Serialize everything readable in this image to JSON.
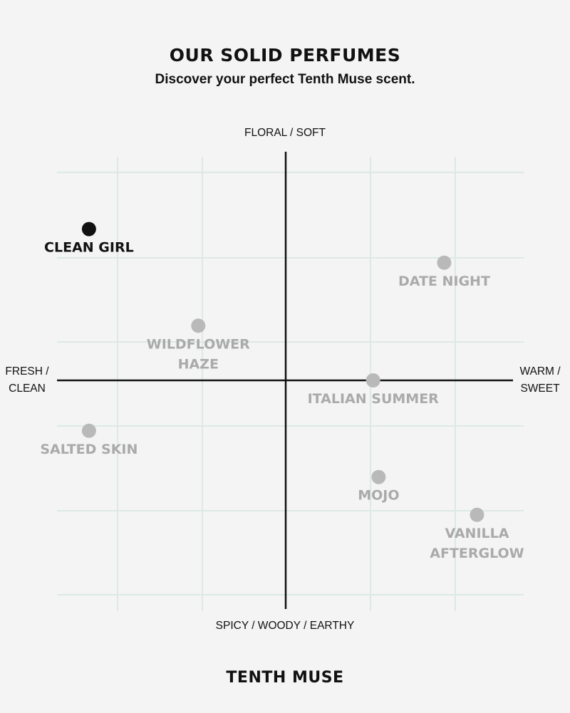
{
  "header": {
    "title": "OUR SOLID PERFUMES",
    "subtitle": "Discover your perfect Tenth Muse scent."
  },
  "footer": {
    "brand": "TENTH MUSE"
  },
  "colors": {
    "background": "#f4f4f4",
    "grid": "#dce9e4",
    "axis": "#111111",
    "highlight": "#111111",
    "muted_point": "#b9b9b9",
    "muted_label": "#aaaaaa"
  },
  "chart_data": {
    "type": "scatter",
    "axes": {
      "top_label": "FLORAL / SOFT",
      "bottom_label": "SPICY / WOODY / EARTHY",
      "left_label": [
        "FRESH /",
        "CLEAN"
      ],
      "right_label": [
        "WARM /",
        "SWEET"
      ]
    },
    "xlim": [
      -2,
      2
    ],
    "ylim": [
      -2.7,
      2.45
    ],
    "grid": true,
    "points": [
      {
        "name": [
          "CLEAN GIRL"
        ],
        "x": -1.8,
        "y": 1.8,
        "highlight": true
      },
      {
        "name": [
          "DATE NIGHT"
        ],
        "x": 1.45,
        "y": 1.4,
        "highlight": false
      },
      {
        "name": [
          "WILDFLOWER",
          "HAZE"
        ],
        "x": -0.8,
        "y": 0.65,
        "highlight": false
      },
      {
        "name": [
          "ITALIAN SUMMER"
        ],
        "x": 0.8,
        "y": 0.0,
        "highlight": false
      },
      {
        "name": [
          "SALTED SKIN"
        ],
        "x": -1.8,
        "y": -0.6,
        "highlight": false
      },
      {
        "name": [
          "MOJO"
        ],
        "x": 0.85,
        "y": -1.15,
        "highlight": false
      },
      {
        "name": [
          "VANILLA",
          "AFTERGLOW"
        ],
        "x": 1.75,
        "y": -1.6,
        "highlight": false
      }
    ]
  }
}
